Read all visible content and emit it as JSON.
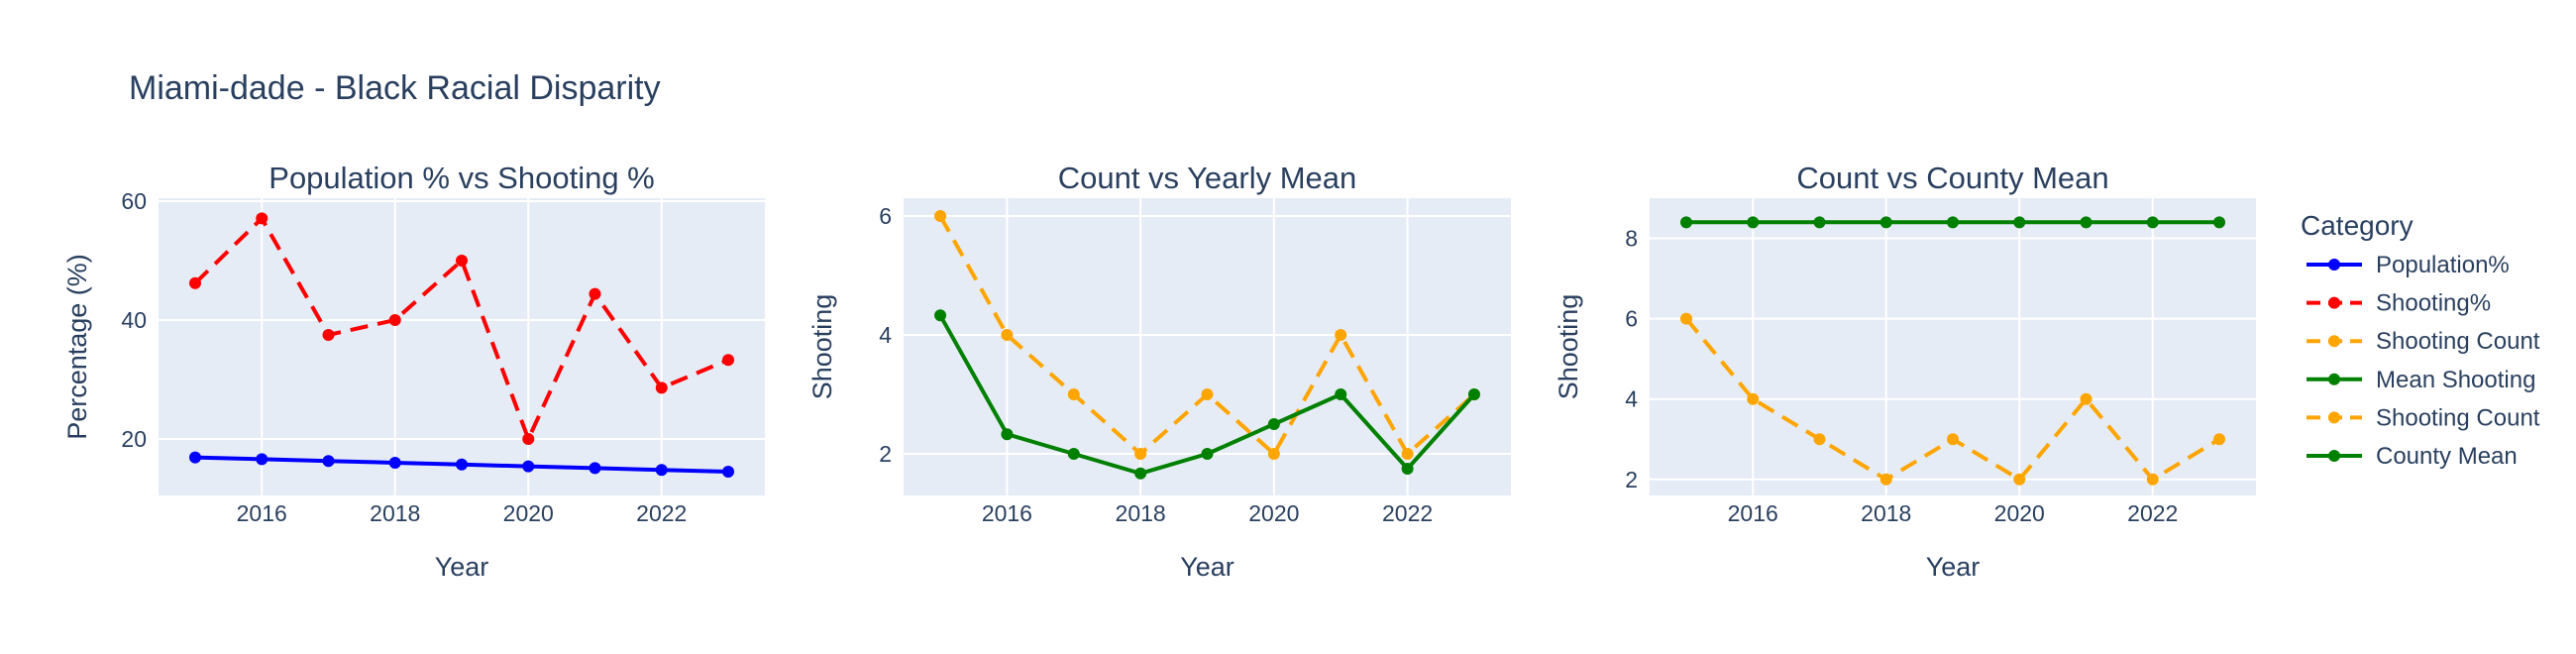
{
  "title": "Miami-dade - Black Racial Disparity",
  "legend": {
    "title": "Category",
    "items": [
      {
        "label": "Population%",
        "color": "#0000ff",
        "dash": "solid"
      },
      {
        "label": "Shooting%",
        "color": "#ff0000",
        "dash": "dash"
      },
      {
        "label": "Shooting Count",
        "color": "#ffa500",
        "dash": "dash"
      },
      {
        "label": "Mean Shooting",
        "color": "#008000",
        "dash": "solid"
      },
      {
        "label": "Shooting Count",
        "color": "#ffa500",
        "dash": "dash"
      },
      {
        "label": "County Mean",
        "color": "#008000",
        "dash": "solid"
      }
    ]
  },
  "chart_data": [
    {
      "type": "line",
      "title": "Population % vs Shooting %",
      "xlabel": "Year",
      "ylabel": "Percentage (%)",
      "xlim": [
        2014.45,
        2023.55
      ],
      "ylim": [
        10.5,
        60.5
      ],
      "xticks": [
        2016,
        2018,
        2020,
        2022
      ],
      "yticks": [
        20,
        40,
        60
      ],
      "x": [
        2015,
        2016,
        2017,
        2018,
        2019,
        2020,
        2021,
        2022,
        2023
      ],
      "series": [
        {
          "name": "Population%",
          "color": "#0000ff",
          "dash": "solid",
          "values": [
            16.9,
            16.6,
            16.3,
            16.0,
            15.7,
            15.4,
            15.1,
            14.8,
            14.5
          ]
        },
        {
          "name": "Shooting%",
          "color": "#ff0000",
          "dash": "dash",
          "values": [
            46.2,
            57.1,
            37.5,
            40.0,
            50.0,
            20.0,
            44.4,
            28.6,
            33.3
          ]
        }
      ]
    },
    {
      "type": "line",
      "title": "Count vs Yearly Mean",
      "xlabel": "Year",
      "ylabel": "Shooting",
      "xlim": [
        2014.45,
        2023.55
      ],
      "ylim": [
        1.3,
        6.3
      ],
      "xticks": [
        2016,
        2018,
        2020,
        2022
      ],
      "yticks": [
        2,
        4,
        6
      ],
      "x": [
        2015,
        2016,
        2017,
        2018,
        2019,
        2020,
        2021,
        2022,
        2023
      ],
      "series": [
        {
          "name": "Shooting Count",
          "color": "#ffa500",
          "dash": "dash",
          "values": [
            6,
            4,
            3,
            2,
            3,
            2,
            4,
            2,
            3
          ]
        },
        {
          "name": "Mean Shooting",
          "color": "#008000",
          "dash": "solid",
          "values": [
            4.33,
            2.33,
            2.0,
            1.67,
            2.0,
            2.5,
            3.0,
            1.75,
            3.0
          ]
        }
      ]
    },
    {
      "type": "line",
      "title": "Count vs County Mean",
      "xlabel": "Year",
      "ylabel": "Shooting",
      "xlim": [
        2014.45,
        2023.55
      ],
      "ylim": [
        1.6,
        9.0
      ],
      "xticks": [
        2016,
        2018,
        2020,
        2022
      ],
      "yticks": [
        2,
        4,
        6,
        8
      ],
      "x": [
        2015,
        2016,
        2017,
        2018,
        2019,
        2020,
        2021,
        2022,
        2023
      ],
      "series": [
        {
          "name": "Shooting Count",
          "color": "#ffa500",
          "dash": "dash",
          "values": [
            6,
            4,
            3,
            2,
            3,
            2,
            4,
            2,
            3
          ]
        },
        {
          "name": "County Mean",
          "color": "#008000",
          "dash": "solid",
          "values": [
            8.4,
            8.4,
            8.4,
            8.4,
            8.4,
            8.4,
            8.4,
            8.4,
            8.4
          ]
        }
      ]
    }
  ]
}
